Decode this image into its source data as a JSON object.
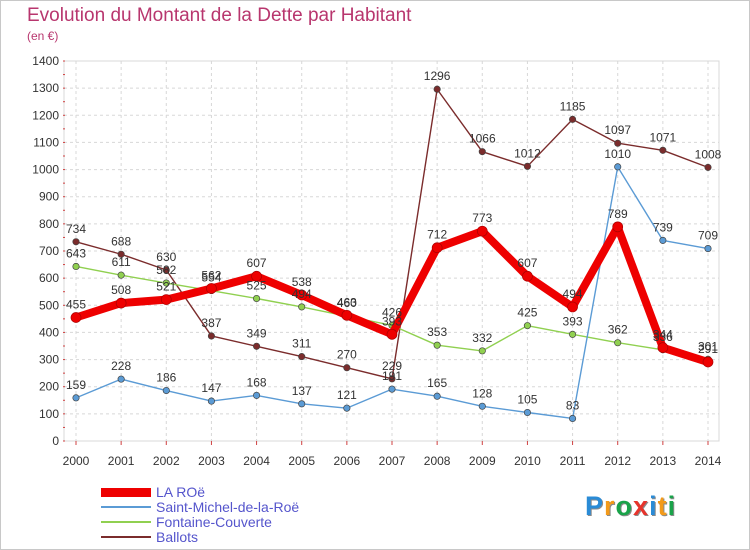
{
  "header": {
    "title": "Evolution du Montant de la Dette par Habitant",
    "subtitle": "(en €)"
  },
  "logo": {
    "letters": [
      "P",
      "r",
      "o",
      "x",
      "i",
      "t",
      "i"
    ],
    "colors": [
      "#2a8bd6",
      "#f39a1a",
      "#1aa34a",
      "#e6342c",
      "#2a8bd6",
      "#f39a1a",
      "#1aa34a"
    ]
  },
  "chart_data": {
    "type": "line",
    "title": "Evolution du Montant de la Dette par Habitant",
    "ylabel": "(en €)",
    "xlabel": "",
    "x": [
      "2000",
      "2001",
      "2002",
      "2003",
      "2004",
      "2005",
      "2006",
      "2007",
      "2008",
      "2009",
      "2010",
      "2011",
      "2012",
      "2013",
      "2014"
    ],
    "ylim": [
      0,
      1400
    ],
    "yticks": [
      "0",
      "100",
      "200",
      "300",
      "400",
      "500",
      "600",
      "700",
      "800",
      "900",
      "1000",
      "1100",
      "1200",
      "1300",
      "1400"
    ],
    "grid": true,
    "legend_position": "bottom-left",
    "series": [
      {
        "name": "LA ROë",
        "color": "#ee0000",
        "values": [
          455,
          508,
          521,
          562,
          607,
          538,
          463,
          393,
          712,
          773,
          607,
          494,
          789,
          344,
          291
        ]
      },
      {
        "name": "Saint-Michel-de-la-Roë",
        "color": "#5b9bd5",
        "values": [
          159,
          228,
          186,
          147,
          168,
          137,
          121,
          191,
          165,
          128,
          105,
          83,
          1010,
          739,
          709
        ]
      },
      {
        "name": "Fontaine-Couverte",
        "color": "#90d050",
        "values": [
          643,
          611,
          582,
          554,
          525,
          494,
          460,
          426,
          353,
          332,
          425,
          393,
          362,
          336,
          301
        ]
      },
      {
        "name": "Ballots",
        "color": "#7b2c2c",
        "values": [
          734,
          688,
          630,
          387,
          349,
          311,
          270,
          229,
          1296,
          1066,
          1012,
          1185,
          1097,
          1071,
          1008
        ]
      }
    ]
  }
}
